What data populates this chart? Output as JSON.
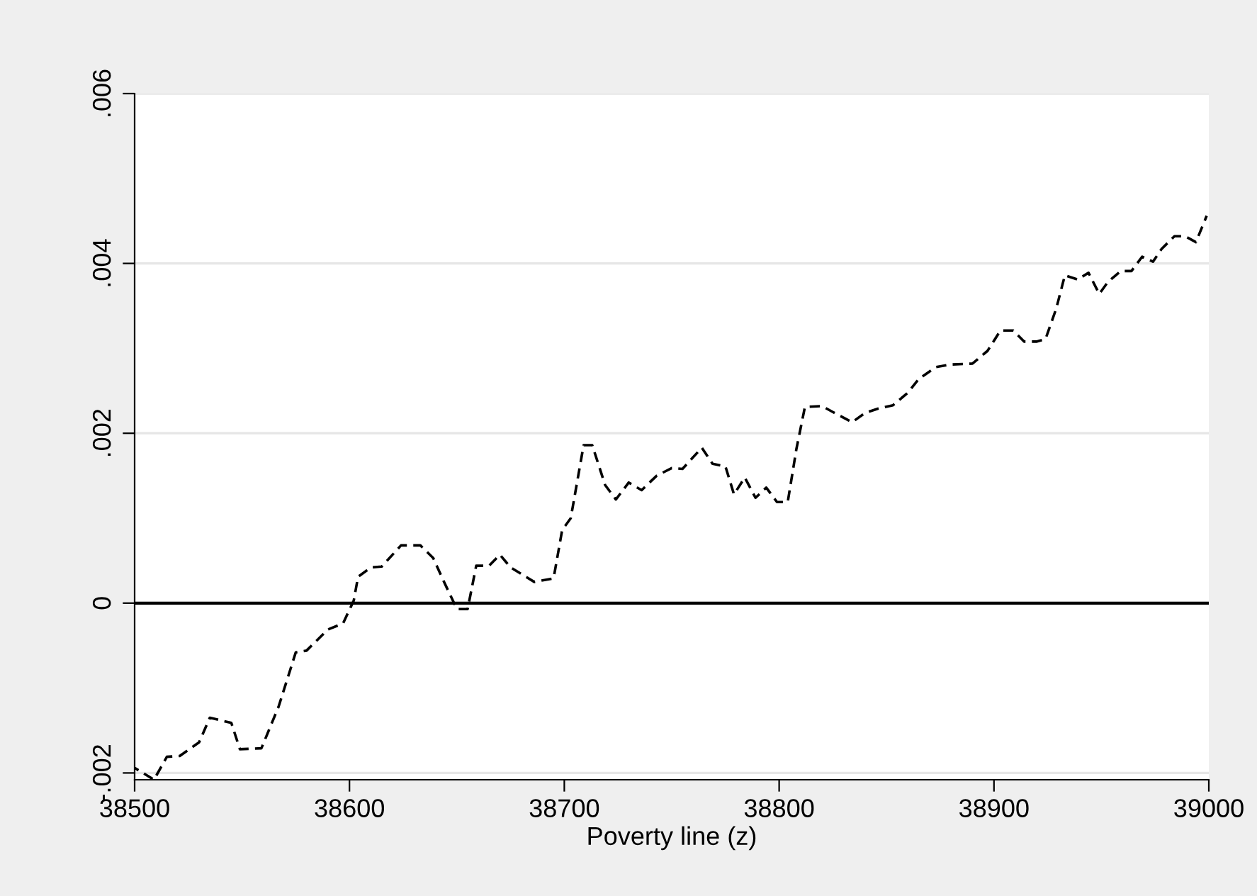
{
  "chart_data": {
    "type": "line",
    "xlabel": "Poverty line (z)",
    "x": [
      38500,
      38509,
      38515,
      38521,
      38530,
      38535,
      38545,
      38549,
      38559,
      38567,
      38575,
      38580,
      38590,
      38597,
      38602,
      38604,
      38610,
      38615,
      38624,
      38633,
      38639,
      38644,
      38650,
      38655,
      38659,
      38665,
      38670,
      38675,
      38686,
      38695,
      38699,
      38703,
      38709,
      38713,
      38719,
      38724,
      38730,
      38736,
      38743,
      38750,
      38755,
      38764,
      38769,
      38775,
      38779,
      38784,
      38789,
      38794,
      38799,
      38804,
      38808,
      38812,
      38820,
      38825,
      38834,
      38840,
      38846,
      38853,
      38860,
      38865,
      38873,
      38880,
      38890,
      38897,
      38903,
      38909,
      38914,
      38920,
      38924,
      38929,
      38933,
      38939,
      38944,
      38949,
      38953,
      38959,
      38964,
      38969,
      38974,
      38978,
      38984,
      38989,
      38994,
      38999
    ],
    "series": [
      {
        "color": "#000000",
        "line_style": "dashed",
        "values": [
          -0.00194,
          -0.00208,
          -0.00181,
          -0.0018,
          -0.00164,
          -0.00135,
          -0.00141,
          -0.00172,
          -0.00171,
          -0.00122,
          -0.00058,
          -0.00056,
          -0.00031,
          -0.00024,
          3e-05,
          0.00031,
          0.00042,
          0.00043,
          0.00068,
          0.00068,
          0.00053,
          0.00025,
          -7e-05,
          -7e-05,
          0.00044,
          0.00044,
          0.00057,
          0.00042,
          0.00025,
          0.00029,
          0.00086,
          0.001,
          0.00186,
          0.00186,
          0.00139,
          0.00122,
          0.00142,
          0.00133,
          0.0015,
          0.00159,
          0.00158,
          0.00183,
          0.00164,
          0.00161,
          0.00128,
          0.00148,
          0.00124,
          0.00136,
          0.00119,
          0.00119,
          0.00181,
          0.00231,
          0.00232,
          0.00225,
          0.00213,
          0.00224,
          0.00229,
          0.00233,
          0.00248,
          0.00264,
          0.00278,
          0.00281,
          0.00282,
          0.00297,
          0.00321,
          0.00321,
          0.00308,
          0.00308,
          0.00311,
          0.00347,
          0.00386,
          0.00381,
          0.00389,
          0.00364,
          0.00378,
          0.00391,
          0.00391,
          0.00408,
          0.00402,
          0.00417,
          0.00432,
          0.00432,
          0.00425,
          0.00456
        ]
      }
    ],
    "xlim": [
      38500,
      39000
    ],
    "xticks": [
      38500,
      38600,
      38700,
      38800,
      38900,
      39000
    ],
    "ylim": [
      -0.00208,
      0.006
    ],
    "yticks": [
      {
        "value": -0.002,
        "label": "-.002"
      },
      {
        "value": 0,
        "label": "0"
      },
      {
        "value": 0.002,
        "label": ".002"
      },
      {
        "value": 0.004,
        "label": ".004"
      },
      {
        "value": 0.006,
        "label": ".006"
      }
    ],
    "ref_lines": [
      {
        "axis": "y",
        "value": 0,
        "color": "#000000",
        "line_style": "solid"
      }
    ],
    "grid": "y",
    "legend": false
  }
}
